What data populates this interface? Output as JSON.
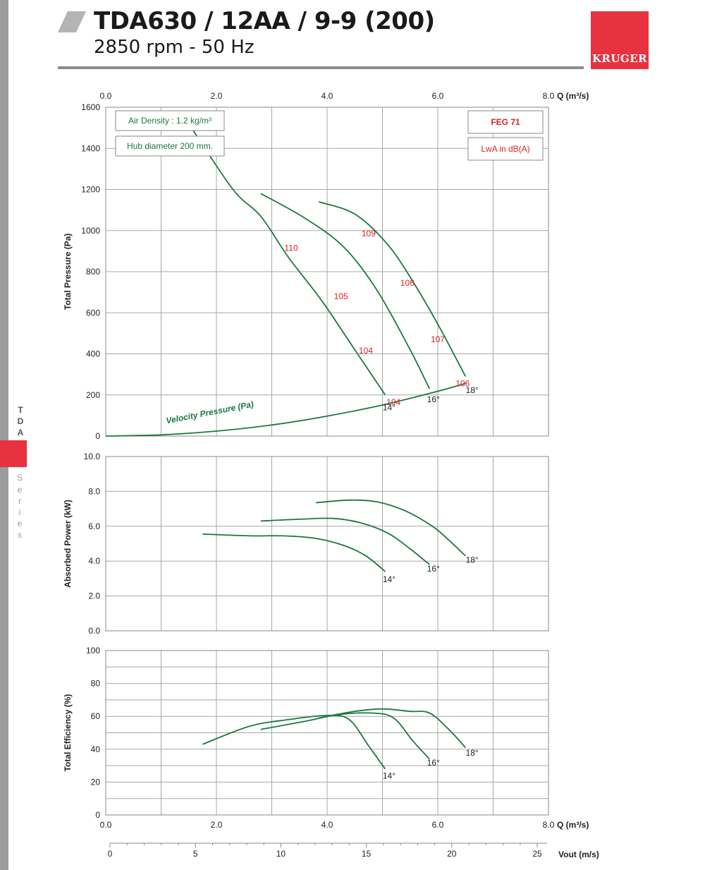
{
  "header": {
    "title": "TDA630 / 12AA / 9-9 (200)",
    "subtitle": "2850 rpm - 50 Hz",
    "brand": "KRUGER"
  },
  "sidebar": {
    "series_code": [
      "T",
      "D",
      "A"
    ],
    "series_word": [
      "S",
      "e",
      "r",
      "i",
      "e",
      "s"
    ]
  },
  "colors": {
    "accent": "#e8323f",
    "curve": "#1a7a3e",
    "noise": "#e02020",
    "sidebar": "#9a9c9e"
  },
  "chart_data": [
    {
      "type": "line",
      "id": "pressure",
      "ylabel": "Total Pressure (Pa)",
      "xlabel": "Q (m³/s)",
      "xlim": [
        0,
        8
      ],
      "ylim": [
        0,
        1600
      ],
      "xticks": [
        "0.0",
        "2.0",
        "4.0",
        "6.0",
        "8.0"
      ],
      "yticks": [
        "0",
        "200",
        "400",
        "600",
        "800",
        "1000",
        "1200",
        "1400",
        "1600"
      ],
      "grid": true,
      "info_boxes": [
        "Air Density : 1.2 kg/m³",
        "Hub diameter 200 mm."
      ],
      "legend_boxes": [
        "FEG 71",
        "LwA in dB(A)"
      ],
      "series": [
        {
          "name": "14°",
          "x": [
            1.5,
            2.3,
            2.8,
            3.3,
            3.9,
            4.5,
            5.05
          ],
          "y": [
            1520,
            1200,
            1070,
            870,
            660,
            420,
            200
          ]
        },
        {
          "name": "16°",
          "x": [
            2.8,
            3.6,
            4.3,
            4.9,
            5.5,
            5.85
          ],
          "y": [
            1180,
            1060,
            920,
            710,
            420,
            230
          ]
        },
        {
          "name": "18°",
          "x": [
            3.85,
            4.5,
            5.1,
            5.6,
            6.05,
            6.5
          ],
          "y": [
            1140,
            1080,
            930,
            730,
            520,
            290
          ]
        },
        {
          "name": "Velocity Pressure (Pa)",
          "x": [
            0,
            1,
            2,
            3,
            4,
            5,
            6,
            6.5
          ],
          "y": [
            0,
            6,
            24,
            54,
            97,
            151,
            218,
            256
          ]
        }
      ],
      "noise_labels": [
        {
          "text": "110",
          "x": 3.35,
          "y": 915
        },
        {
          "text": "105",
          "x": 4.25,
          "y": 680
        },
        {
          "text": "104",
          "x": 4.7,
          "y": 415
        },
        {
          "text": "104",
          "x": 5.2,
          "y": 165
        },
        {
          "text": "109",
          "x": 4.75,
          "y": 985
        },
        {
          "text": "106",
          "x": 5.45,
          "y": 745
        },
        {
          "text": "107",
          "x": 6.0,
          "y": 470
        },
        {
          "text": "106",
          "x": 6.45,
          "y": 255
        }
      ],
      "angle_labels": [
        {
          "text": "14°",
          "x": 5.12,
          "y": 125
        },
        {
          "text": "16°",
          "x": 5.92,
          "y": 165
        },
        {
          "text": "18°",
          "x": 6.62,
          "y": 210
        }
      ],
      "vp_label": {
        "text": "Velocity Pressure (Pa)",
        "x": 1.1,
        "y": 60
      }
    },
    {
      "type": "line",
      "id": "power",
      "ylabel": "Absorbed Power (kW)",
      "xlim": [
        0,
        8
      ],
      "ylim": [
        0,
        10
      ],
      "yticks": [
        "0.0",
        "2.0",
        "4.0",
        "6.0",
        "8.0",
        "10.0"
      ],
      "grid": true,
      "series": [
        {
          "name": "14°",
          "x": [
            1.75,
            2.6,
            3.2,
            3.8,
            4.3,
            4.7,
            5.05
          ],
          "y": [
            5.55,
            5.45,
            5.45,
            5.3,
            4.9,
            4.3,
            3.4
          ]
        },
        {
          "name": "16°",
          "x": [
            2.8,
            3.5,
            4.1,
            4.6,
            5.1,
            5.5,
            5.85
          ],
          "y": [
            6.3,
            6.4,
            6.45,
            6.2,
            5.6,
            4.7,
            3.8
          ]
        },
        {
          "name": "18°",
          "x": [
            3.8,
            4.4,
            4.9,
            5.4,
            5.9,
            6.2,
            6.5
          ],
          "y": [
            7.35,
            7.5,
            7.4,
            6.9,
            6.0,
            5.2,
            4.3
          ]
        }
      ],
      "angle_labels": [
        {
          "text": "14°",
          "x": 5.12,
          "y": 2.8
        },
        {
          "text": "16°",
          "x": 5.92,
          "y": 3.4
        },
        {
          "text": "18°",
          "x": 6.62,
          "y": 3.9
        }
      ]
    },
    {
      "type": "line",
      "id": "efficiency",
      "ylabel": "Total Efficiency (%)",
      "xlabel": "Q (m³/s)",
      "xlim": [
        0,
        8
      ],
      "ylim": [
        0,
        100
      ],
      "xticks": [
        "0.0",
        "2.0",
        "4.0",
        "6.0",
        "8.0"
      ],
      "yticks": [
        "0",
        "20",
        "40",
        "60",
        "80",
        "100"
      ],
      "grid": true,
      "series": [
        {
          "name": "14°",
          "x": [
            1.75,
            2.6,
            3.3,
            4.0,
            4.4,
            4.75,
            5.05
          ],
          "y": [
            43,
            54,
            58,
            60.5,
            58,
            42,
            28
          ]
        },
        {
          "name": "16°",
          "x": [
            2.8,
            3.6,
            4.2,
            4.8,
            5.2,
            5.55,
            5.85
          ],
          "y": [
            52,
            57,
            61,
            62,
            59,
            45,
            34
          ]
        },
        {
          "name": "18°",
          "x": [
            3.85,
            4.5,
            5.0,
            5.5,
            5.85,
            6.2,
            6.5
          ],
          "y": [
            59,
            63,
            64.5,
            63,
            62,
            52,
            41
          ]
        }
      ],
      "angle_labels": [
        {
          "text": "14°",
          "x": 5.12,
          "y": 22
        },
        {
          "text": "16°",
          "x": 5.92,
          "y": 30
        },
        {
          "text": "18°",
          "x": 6.62,
          "y": 36
        }
      ]
    },
    {
      "type": "axis",
      "id": "velocity",
      "xlabel": "Vout (m/s)",
      "xlim": [
        0,
        25
      ],
      "xticks": [
        "0",
        "5",
        "10",
        "15",
        "20",
        "25"
      ]
    }
  ]
}
